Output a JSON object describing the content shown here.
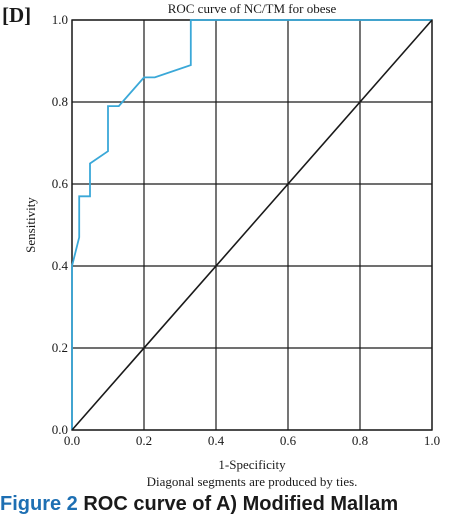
{
  "panel_label": "[D]",
  "caption": {
    "figure_label": "Figure 2",
    "text": "ROC curve of A) Modified Mallam"
  },
  "chart_data": {
    "type": "line",
    "title": "ROC curve of NC/TM for obese",
    "xlabel": "1-Specificity",
    "ylabel": "Sensitivity",
    "footnote": "Diagonal segments are produced by ties.",
    "xlim": [
      0,
      1
    ],
    "ylim": [
      0,
      1
    ],
    "x_ticks": [
      "0.0",
      "0.2",
      "0.4",
      "0.6",
      "0.8",
      "1.0"
    ],
    "y_ticks": [
      "0.0",
      "0.2",
      "0.4",
      "0.6",
      "0.8",
      "1.0"
    ],
    "grid": true,
    "legend": "none",
    "series": [
      {
        "color": "#3aa8d8",
        "x": [
          0.0,
          0.0,
          0.02,
          0.02,
          0.05,
          0.05,
          0.1,
          0.1,
          0.13,
          0.2,
          0.23,
          0.33,
          0.33,
          1.0
        ],
        "y": [
          0.0,
          0.4,
          0.47,
          0.57,
          0.57,
          0.65,
          0.68,
          0.79,
          0.79,
          0.86,
          0.86,
          0.89,
          1.0,
          1.0
        ]
      },
      {
        "color": "#1a1a1a",
        "x": [
          0,
          1
        ],
        "y": [
          0,
          1
        ]
      }
    ]
  }
}
